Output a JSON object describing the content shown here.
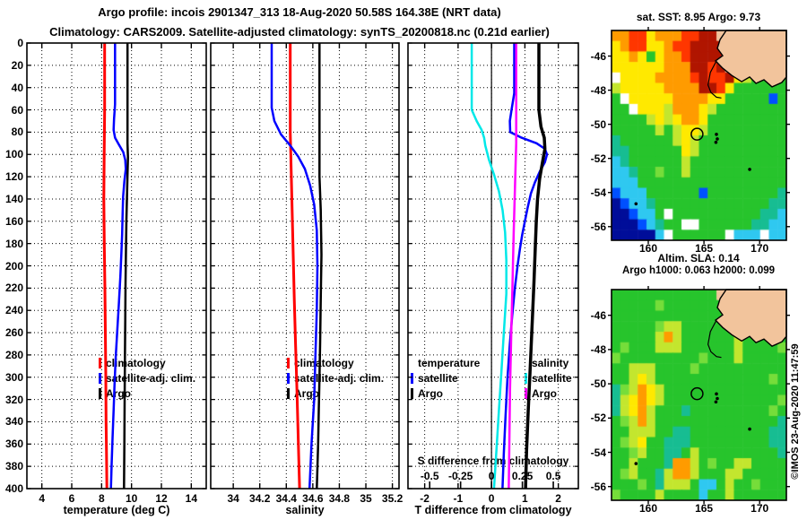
{
  "header": {
    "title_line1": "Argo profile: incois 2901347_313 18-Aug-2020 50.58S 164.38E (NRT data)",
    "title_line2": "Climatology: CARS2009. Satellite-adjusted climatology: synTS_20200818.nc (0.21d earlier)"
  },
  "watermark": "©IMOS 23-Aug-2020 11:47:59",
  "colors": {
    "climatology": "#ff0000",
    "satellite_adj": "#0000ff",
    "argo": "#000000",
    "temp_satellite": "#0000ff",
    "temp_argo": "#000000",
    "sal_satellite": "#00e8e8",
    "sal_argo": "#ff00ff",
    "frame": "#000000",
    "grid": "#000000",
    "land": "#f2c49c"
  },
  "map_shapes": {
    "land_polygon": [
      [
        0.656,
        0.0
      ],
      [
        0.621,
        0.043
      ],
      [
        0.605,
        0.085
      ],
      [
        0.636,
        0.12
      ],
      [
        0.595,
        0.145
      ],
      [
        0.636,
        0.18
      ],
      [
        0.687,
        0.214
      ],
      [
        0.744,
        0.244
      ],
      [
        0.79,
        0.222
      ],
      [
        0.826,
        0.252
      ],
      [
        0.872,
        0.235
      ],
      [
        0.918,
        0.269
      ],
      [
        0.974,
        0.248
      ],
      [
        1.0,
        0.222
      ],
      [
        1.0,
        0.0
      ]
    ],
    "coast_line": [
      [
        0.6,
        0.145
      ],
      [
        0.565,
        0.2
      ],
      [
        0.552,
        0.26
      ],
      [
        0.568,
        0.295
      ],
      [
        0.6,
        0.318
      ],
      [
        0.628,
        0.322
      ]
    ],
    "islets": [
      [
        0.6,
        0.495
      ],
      [
        0.605,
        0.517
      ],
      [
        0.597,
        0.533
      ],
      [
        0.79,
        0.662
      ],
      [
        0.14,
        0.826
      ]
    ]
  },
  "palette": {
    "K": "#000d99",
    "B": "#0050ff",
    "C": "#2fc8f0",
    "T": "#17bd92",
    "G": "#27c42c",
    "g": "#76dd3a",
    "y": "#c3e62e",
    "Y": "#ffe900",
    "O": "#ff9b00",
    "R": "#ff3600",
    "D": "#b01500",
    "W": "#ffffff",
    "L": "#f2c49c"
  },
  "chart_data": [
    {
      "id": "temperature_profile",
      "type": "line",
      "xlabel": "temperature (deg C)",
      "xlim": [
        3.0,
        15.0
      ],
      "xticks": [
        4,
        6,
        8,
        10,
        12,
        14
      ],
      "xtick_labels": [
        "4",
        "6",
        "8",
        "10",
        "12",
        "14"
      ],
      "ylim": [
        0,
        400
      ],
      "yticks": [
        0,
        20,
        40,
        60,
        80,
        100,
        120,
        140,
        160,
        180,
        200,
        220,
        240,
        260,
        280,
        300,
        320,
        340,
        360,
        380,
        400
      ],
      "y_meaning": "depth (m), increasing downward",
      "grid": "dotted",
      "legend": [
        "climatology",
        "satellite-adj. clim.",
        "Argo"
      ],
      "series": [
        {
          "name": "climatology",
          "color": "#ff0000",
          "width": 3,
          "points": [
            [
              8.2,
              0
            ],
            [
              8.2,
              60
            ],
            [
              8.17,
              100
            ],
            [
              8.15,
              140
            ],
            [
              8.18,
              180
            ],
            [
              8.22,
              220
            ],
            [
              8.25,
              260
            ],
            [
              8.28,
              300
            ],
            [
              8.3,
              340
            ],
            [
              8.33,
              370
            ],
            [
              8.35,
              400
            ]
          ]
        },
        {
          "name": "satellite-adj. clim.",
          "color": "#0000ff",
          "width": 2.5,
          "points": [
            [
              8.9,
              0
            ],
            [
              8.9,
              55
            ],
            [
              8.83,
              68
            ],
            [
              8.8,
              78
            ],
            [
              8.9,
              85
            ],
            [
              9.15,
              91
            ],
            [
              9.45,
              98
            ],
            [
              9.58,
              105
            ],
            [
              9.62,
              113
            ],
            [
              9.52,
              124
            ],
            [
              9.44,
              138
            ],
            [
              9.4,
              155
            ],
            [
              9.37,
              172
            ],
            [
              9.32,
              190
            ],
            [
              9.25,
              210
            ],
            [
              9.15,
              235
            ],
            [
              9.05,
              258
            ],
            [
              8.95,
              280
            ],
            [
              8.87,
              305
            ],
            [
              8.8,
              330
            ],
            [
              8.73,
              355
            ],
            [
              8.67,
              378
            ],
            [
              8.62,
              400
            ]
          ]
        },
        {
          "name": "Argo",
          "color": "#000000",
          "width": 2.5,
          "points": [
            [
              9.73,
              0
            ],
            [
              9.73,
              90
            ],
            [
              9.76,
              103
            ],
            [
              9.73,
              118
            ],
            [
              9.7,
              135
            ],
            [
              9.66,
              158
            ],
            [
              9.63,
              185
            ],
            [
              9.6,
              215
            ],
            [
              9.58,
              248
            ],
            [
              9.56,
              285
            ],
            [
              9.54,
              320
            ],
            [
              9.52,
              360
            ],
            [
              9.5,
              400
            ]
          ]
        }
      ]
    },
    {
      "id": "salinity_profile",
      "type": "line",
      "xlabel": "salinity",
      "xlim": [
        33.83,
        35.25
      ],
      "xticks": [
        34,
        34.2,
        34.4,
        34.6,
        34.8,
        35,
        35.2
      ],
      "xtick_labels": [
        "34",
        "34.2",
        "34.4",
        "34.6",
        "34.8",
        "35",
        "35.2"
      ],
      "ylim": [
        0,
        400
      ],
      "yticks": [
        0,
        20,
        40,
        60,
        80,
        100,
        120,
        140,
        160,
        180,
        200,
        220,
        240,
        260,
        280,
        300,
        320,
        340,
        360,
        380,
        400
      ],
      "grid": "dotted",
      "legend": [
        "climatology",
        "satellite-adj. clim.",
        "Argo"
      ],
      "series": [
        {
          "name": "climatology",
          "color": "#ff0000",
          "width": 3,
          "points": [
            [
              34.43,
              0
            ],
            [
              34.43,
              80
            ],
            [
              34.44,
              130
            ],
            [
              34.45,
              180
            ],
            [
              34.46,
              230
            ],
            [
              34.47,
              270
            ],
            [
              34.48,
              310
            ],
            [
              34.49,
              355
            ],
            [
              34.5,
              400
            ]
          ]
        },
        {
          "name": "satellite-adj. clim.",
          "color": "#0000ff",
          "width": 2.5,
          "points": [
            [
              34.29,
              0
            ],
            [
              34.29,
              58
            ],
            [
              34.31,
              70
            ],
            [
              34.36,
              82
            ],
            [
              34.43,
              92
            ],
            [
              34.49,
              102
            ],
            [
              34.54,
              113
            ],
            [
              34.58,
              128
            ],
            [
              34.61,
              145
            ],
            [
              34.63,
              168
            ],
            [
              34.635,
              200
            ],
            [
              34.63,
              240
            ],
            [
              34.62,
              280
            ],
            [
              34.61,
              320
            ],
            [
              34.59,
              360
            ],
            [
              34.575,
              400
            ]
          ]
        },
        {
          "name": "Argo",
          "color": "#000000",
          "width": 2.5,
          "points": [
            [
              34.65,
              0
            ],
            [
              34.65,
              120
            ],
            [
              34.66,
              150
            ],
            [
              34.665,
              190
            ],
            [
              34.66,
              230
            ],
            [
              34.655,
              270
            ],
            [
              34.65,
              300
            ],
            [
              34.645,
              330
            ],
            [
              34.64,
              360
            ],
            [
              34.63,
              400
            ]
          ]
        }
      ]
    },
    {
      "id": "difference_profile",
      "type": "line",
      "xlabel": "T difference from climatology",
      "xlim": [
        -2.5,
        2.6
      ],
      "xticks": [
        -2,
        -1,
        0,
        1,
        2
      ],
      "xtick_labels": [
        "-2",
        "-1",
        "0",
        "1",
        "2"
      ],
      "zero_line": true,
      "ylim": [
        0,
        400
      ],
      "yticks": [
        0,
        20,
        40,
        60,
        80,
        100,
        120,
        140,
        160,
        180,
        200,
        220,
        240,
        260,
        280,
        300,
        320,
        340,
        360,
        380,
        400
      ],
      "grid": "dotted",
      "secondary_axis": {
        "label": "S difference from climatology",
        "ticks": [
          -0.5,
          -0.25,
          0,
          0.25,
          0.5
        ],
        "tick_labels": [
          "-0.5",
          "-0.25",
          "0",
          "0.25",
          "0.5"
        ],
        "t_units_per_s_unit": 3.7
      },
      "legend_groups": [
        {
          "header": "temperature",
          "items": [
            "satellite",
            "Argo"
          ]
        },
        {
          "header": "salinity",
          "items": [
            "satellite",
            "Argo"
          ]
        }
      ],
      "series": [
        {
          "name": "temperature satellite",
          "axis": "T",
          "color": "#0000ff",
          "width": 2.5,
          "points": [
            [
              0.68,
              0
            ],
            [
              0.68,
              45
            ],
            [
              0.6,
              60
            ],
            [
              0.55,
              70
            ],
            [
              0.56,
              80
            ],
            [
              0.9,
              85
            ],
            [
              1.35,
              90
            ],
            [
              1.6,
              95
            ],
            [
              1.66,
              100
            ],
            [
              1.6,
              107
            ],
            [
              1.45,
              115
            ],
            [
              1.3,
              125
            ],
            [
              1.18,
              135
            ],
            [
              1.08,
              148
            ],
            [
              1.0,
              160
            ],
            [
              0.92,
              172
            ],
            [
              0.85,
              185
            ],
            [
              0.78,
              200
            ],
            [
              0.7,
              220
            ],
            [
              0.62,
              245
            ],
            [
              0.55,
              270
            ],
            [
              0.48,
              300
            ],
            [
              0.42,
              335
            ],
            [
              0.37,
              368
            ],
            [
              0.33,
              400
            ]
          ]
        },
        {
          "name": "temperature Argo",
          "axis": "T",
          "color": "#000000",
          "width": 3.5,
          "points": [
            [
              1.42,
              0
            ],
            [
              1.42,
              60
            ],
            [
              1.48,
              75
            ],
            [
              1.58,
              85
            ],
            [
              1.6,
              95
            ],
            [
              1.52,
              108
            ],
            [
              1.44,
              122
            ],
            [
              1.38,
              140
            ],
            [
              1.34,
              160
            ],
            [
              1.31,
              185
            ],
            [
              1.27,
              215
            ],
            [
              1.22,
              250
            ],
            [
              1.16,
              290
            ],
            [
              1.1,
              330
            ],
            [
              1.05,
              365
            ],
            [
              1.02,
              400
            ]
          ]
        },
        {
          "name": "salinity satellite",
          "axis": "S",
          "color": "#00e8e8",
          "width": 2.5,
          "points": [
            [
              -0.16,
              0
            ],
            [
              -0.16,
              60
            ],
            [
              -0.12,
              70
            ],
            [
              -0.08,
              78
            ],
            [
              -0.06,
              85
            ],
            [
              -0.05,
              92
            ],
            [
              -0.02,
              105
            ],
            [
              0.02,
              118
            ],
            [
              0.06,
              133
            ],
            [
              0.09,
              150
            ],
            [
              0.11,
              170
            ],
            [
              0.12,
              195
            ],
            [
              0.12,
              225
            ],
            [
              0.1,
              260
            ],
            [
              0.08,
              295
            ],
            [
              0.06,
              330
            ],
            [
              0.04,
              365
            ],
            [
              0.02,
              400
            ]
          ]
        },
        {
          "name": "salinity Argo",
          "axis": "S",
          "color": "#ff00ff",
          "width": 2.5,
          "points": [
            [
              0.2,
              0
            ],
            [
              0.2,
              90
            ],
            [
              0.19,
              130
            ],
            [
              0.18,
              170
            ],
            [
              0.17,
              215
            ],
            [
              0.16,
              260
            ],
            [
              0.15,
              310
            ],
            [
              0.145,
              355
            ],
            [
              0.14,
              400
            ]
          ]
        }
      ]
    },
    {
      "id": "sst_map",
      "type": "heatmap",
      "title": "sat. SST: 8.95 Argo: 9.73",
      "stats": {
        "sat_sst": 8.95,
        "argo_sst": 9.73
      },
      "lon_range": [
        156.7,
        172.4
      ],
      "lat_range": [
        -44.5,
        -56.8
      ],
      "xticks": [
        160,
        165,
        170
      ],
      "xtick_labels": [
        "160",
        "165",
        "170"
      ],
      "yticks": [
        -46,
        -48,
        -50,
        -52,
        -54,
        -56
      ],
      "ytick_labels": [
        "-46",
        "-48",
        "-50",
        "-52",
        "-54",
        "-56"
      ],
      "marker": {
        "lon": 164.38,
        "lat": -50.58,
        "symbol": "circle"
      },
      "grid_rows": [
        "OORRYOOORRDDLLLLLLLL",
        "YORRYYORRDDDDLLLLLLY",
        "YYOYGYOORDDDDLLLLLYy",
        "YYYYYYOOODDRDLLLLYyG",
        "WYYYYOOOORDRRDYyGGyG",
        "yYYYYYOOOODDRYGGGGGG",
        "GWYYYYYOOOOYYGGGGGBG",
        "GGWYYYyOOOYyGGGGGGGG",
        "GGGGyYyYOOYGGGGGGGGG",
        "GGGGGyGyYYyGGGGGGGGG",
        "TGGGGGGyYyGGGGGGGGGG",
        "TTGGGGGGYyGGGGGGGGGG",
        "CTGGGGGGyGGGGGGGGGGG",
        "CCTGGgGGyGGGGGGGGGGG",
        "CCCGGGGGGGGGGGGGGGGG",
        "BCCCGGGGGGBGGGGGGGGT",
        "KBCCTGGGGGGGGGGGGGTT",
        "KKBCCGWGGGGGGGGGGTTC",
        "KKKBCTGGWWGGGGGGTTCC",
        "KKKKKCWGGGGGGWCCCWCC"
      ]
    },
    {
      "id": "sla_map",
      "type": "heatmap",
      "title": "Altim. SLA: 0.14",
      "subtitle": "Argo h1000: 0.063 h2000: 0.099",
      "stats": {
        "altim_sla": 0.14,
        "argo_h1000": 0.063,
        "argo_h2000": 0.099
      },
      "lon_range": [
        156.7,
        172.4
      ],
      "lat_range": [
        -44.5,
        -56.8
      ],
      "xticks": [
        160,
        165,
        170
      ],
      "xtick_labels": [
        "160",
        "165",
        "170"
      ],
      "yticks": [
        -46,
        -48,
        -50,
        -52,
        -54,
        -56
      ],
      "ytick_labels": [
        "-46",
        "-48",
        "-50",
        "-52",
        "-54",
        "-56"
      ],
      "marker": {
        "lon": 164.38,
        "lat": -50.58,
        "symbol": "circle"
      },
      "grid_rows": [
        "GGGGGGGGGGGGLLLLLLLG",
        "GGGGGgGGGGGGGLLLLLGG",
        "GGGGGGGGGGGGGLLyGGGG",
        "GGGGGgyyGGGGGGyyGGGG",
        "GGGGGyOyGGGGGGyGGGGG",
        "GgGGGyyyGGGGGGyGGGGg",
        "gGGGGGGGGGgGGGyGGGGG",
        "GGyyyGGGGgGGGGGGGGGG",
        "GGyYyGGGGGGGGGGGGGgG",
        "TgyOYyGGGGGGGGGGGGGG",
        "TyYOYyGGGGGGGGGGGGGg",
        "TyYOyGGGTGGGGGGGGGgG",
        "GgyOyGGGGGGGGGGGGGGT",
        "GGyyyGGTTGGGGGGGGGTT",
        "GgyYGGTTTGGGGGGGGGTT",
        "GGgyGGTTGyGGGGGGGGGT",
        "GGyGGGTOOyGgGGyyGGGG",
        "GgyGGTyOOyGGGyyGGGGG",
        "GGGgGTyyyGCCGyGGgGGG",
        "gGGGGyGGGGCGGyGGGGGG"
      ]
    }
  ]
}
